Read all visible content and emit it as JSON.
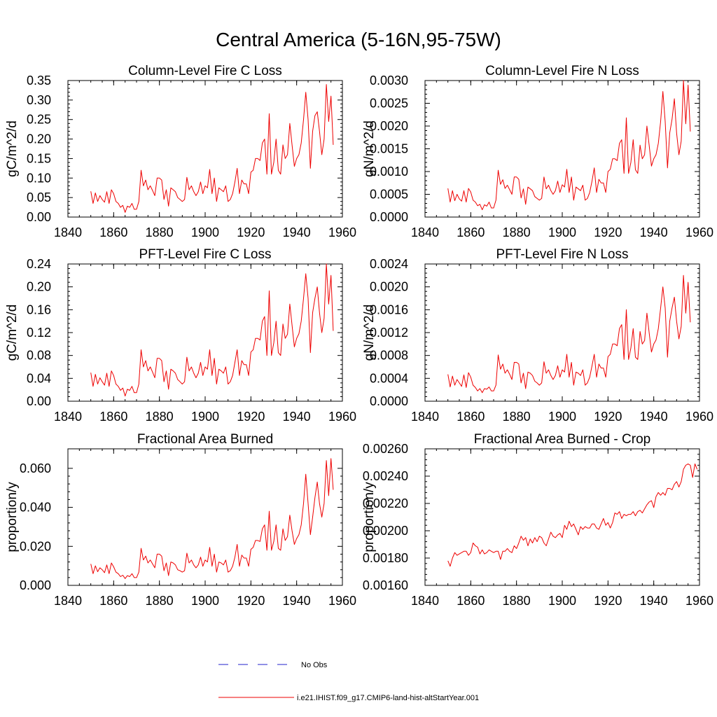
{
  "figure": {
    "title": "Central America (5-16N,95-75W)"
  },
  "legend": {
    "entries": [
      {
        "label": "No Obs",
        "color": "#2020cc",
        "dash": true
      },
      {
        "label": "i.e21.IHIST.f09_g17.CMIP6-land-hist-altStartYear.001",
        "color": "#ee0000",
        "dash": false
      }
    ]
  },
  "chart_data": [
    {
      "type": "line",
      "title": "Column-Level Fire C Loss",
      "ylabel": "gC/m^2/d",
      "xlim": [
        1840,
        1960
      ],
      "ylim": [
        0.0,
        0.35
      ],
      "xticks": [
        "1840",
        "1860",
        "1880",
        "1900",
        "1920",
        "1940",
        "1960"
      ],
      "yticks": [
        "0.00",
        "0.05",
        "0.10",
        "0.15",
        "0.20",
        "0.25",
        "0.30",
        "0.35"
      ],
      "series": [
        {
          "color": "#ee0000",
          "x_start": 1850,
          "values": [
            0.066,
            0.035,
            0.062,
            0.04,
            0.055,
            0.045,
            0.038,
            0.065,
            0.035,
            0.07,
            0.06,
            0.04,
            0.035,
            0.025,
            0.03,
            0.012,
            0.028,
            0.025,
            0.035,
            0.02,
            0.02,
            0.04,
            0.12,
            0.08,
            0.095,
            0.07,
            0.08,
            0.068,
            0.055,
            0.1,
            0.1,
            0.095,
            0.045,
            0.07,
            0.028,
            0.075,
            0.07,
            0.065,
            0.05,
            0.045,
            0.04,
            0.045,
            0.102,
            0.07,
            0.08,
            0.065,
            0.055,
            0.065,
            0.09,
            0.06,
            0.08,
            0.075,
            0.122,
            0.06,
            0.1,
            0.04,
            0.075,
            0.07,
            0.065,
            0.08,
            0.04,
            0.045,
            0.06,
            0.09,
            0.125,
            0.06,
            0.095,
            0.085,
            0.085,
            0.06,
            0.115,
            0.12,
            0.15,
            0.15,
            0.145,
            0.19,
            0.2,
            0.11,
            0.265,
            0.11,
            0.14,
            0.2,
            0.12,
            0.11,
            0.185,
            0.15,
            0.16,
            0.24,
            0.185,
            0.13,
            0.15,
            0.16,
            0.19,
            0.25,
            0.32,
            0.25,
            0.125,
            0.22,
            0.26,
            0.27,
            0.22,
            0.16,
            0.2,
            0.34,
            0.245,
            0.31,
            0.185
          ]
        }
      ]
    },
    {
      "type": "line",
      "title": "Column-Level Fire N Loss",
      "ylabel": "gN/m^2/d",
      "xlim": [
        1840,
        1960
      ],
      "ylim": [
        0.0,
        0.003
      ],
      "xticks": [
        "1840",
        "1860",
        "1880",
        "1900",
        "1920",
        "1940",
        "1960"
      ],
      "yticks": [
        "0.0000",
        "0.0005",
        "0.0010",
        "0.0015",
        "0.0020",
        "0.0025",
        "0.0030"
      ],
      "series": [
        {
          "color": "#ee0000",
          "x_start": 1850,
          "values": [
            0.00063,
            0.00033,
            0.00058,
            0.00036,
            0.0005,
            0.0004,
            0.00035,
            0.00058,
            0.00033,
            0.00063,
            0.00055,
            0.00037,
            0.00033,
            0.00025,
            0.00028,
            0.00016,
            0.00027,
            0.00024,
            0.00033,
            0.0002,
            0.0002,
            0.00037,
            0.00103,
            0.00072,
            0.00082,
            0.00063,
            0.0007,
            0.0006,
            0.0005,
            0.00088,
            0.00088,
            0.00083,
            0.00042,
            0.00062,
            0.00028,
            0.00066,
            0.00062,
            0.00058,
            0.00045,
            0.00041,
            0.00037,
            0.00041,
            0.00088,
            0.00062,
            0.0007,
            0.00058,
            0.0005,
            0.00058,
            0.00079,
            0.00054,
            0.00071,
            0.00066,
            0.00105,
            0.00054,
            0.00088,
            0.00037,
            0.00066,
            0.00062,
            0.00058,
            0.0007,
            0.00037,
            0.00041,
            0.00054,
            0.00079,
            0.00108,
            0.00054,
            0.00083,
            0.00075,
            0.00075,
            0.00054,
            0.001,
            0.00105,
            0.00128,
            0.00128,
            0.00124,
            0.00162,
            0.0017,
            0.00096,
            0.00218,
            0.00096,
            0.0012,
            0.0017,
            0.00104,
            0.00096,
            0.00158,
            0.00128,
            0.00137,
            0.002,
            0.00158,
            0.00112,
            0.00128,
            0.00137,
            0.00162,
            0.0021,
            0.00276,
            0.0021,
            0.00108,
            0.00185,
            0.00215,
            0.0026,
            0.00185,
            0.00137,
            0.00167,
            0.003,
            0.00205,
            0.0029,
            0.00188
          ]
        }
      ]
    },
    {
      "type": "line",
      "title": "PFT-Level Fire C Loss",
      "ylabel": "gC/m^2/d",
      "xlim": [
        1840,
        1960
      ],
      "ylim": [
        0.0,
        0.24
      ],
      "xticks": [
        "1840",
        "1860",
        "1880",
        "1900",
        "1920",
        "1940",
        "1960"
      ],
      "yticks": [
        "0.00",
        "0.04",
        "0.08",
        "0.12",
        "0.16",
        "0.20",
        "0.24"
      ],
      "series": [
        {
          "color": "#ee0000",
          "x_start": 1850,
          "values": [
            0.05,
            0.026,
            0.047,
            0.03,
            0.041,
            0.034,
            0.028,
            0.049,
            0.026,
            0.053,
            0.045,
            0.03,
            0.026,
            0.019,
            0.023,
            0.009,
            0.021,
            0.019,
            0.026,
            0.015,
            0.015,
            0.03,
            0.09,
            0.06,
            0.071,
            0.053,
            0.06,
            0.051,
            0.041,
            0.075,
            0.075,
            0.071,
            0.034,
            0.053,
            0.021,
            0.056,
            0.053,
            0.049,
            0.038,
            0.034,
            0.03,
            0.034,
            0.077,
            0.053,
            0.06,
            0.049,
            0.041,
            0.049,
            0.068,
            0.045,
            0.06,
            0.056,
            0.09,
            0.045,
            0.075,
            0.03,
            0.056,
            0.053,
            0.049,
            0.06,
            0.03,
            0.034,
            0.045,
            0.068,
            0.09,
            0.045,
            0.071,
            0.064,
            0.064,
            0.045,
            0.086,
            0.09,
            0.11,
            0.11,
            0.107,
            0.14,
            0.148,
            0.08,
            0.193,
            0.08,
            0.102,
            0.14,
            0.085,
            0.08,
            0.135,
            0.11,
            0.117,
            0.17,
            0.133,
            0.095,
            0.11,
            0.118,
            0.14,
            0.18,
            0.223,
            0.18,
            0.085,
            0.155,
            0.18,
            0.2,
            0.155,
            0.12,
            0.145,
            0.24,
            0.17,
            0.22,
            0.123
          ]
        }
      ]
    },
    {
      "type": "line",
      "title": "PFT-Level Fire N Loss",
      "ylabel": "gN/m^2/d",
      "xlim": [
        1840,
        1960
      ],
      "ylim": [
        0.0,
        0.0024
      ],
      "xticks": [
        "1840",
        "1860",
        "1880",
        "1900",
        "1920",
        "1940",
        "1960"
      ],
      "yticks": [
        "0.0000",
        "0.0004",
        "0.0008",
        "0.0012",
        "0.0016",
        "0.0020",
        "0.0024"
      ],
      "series": [
        {
          "color": "#ee0000",
          "x_start": 1850,
          "values": [
            0.00047,
            0.00025,
            0.00044,
            0.00028,
            0.00038,
            0.00032,
            0.00026,
            0.00046,
            0.00024,
            0.0005,
            0.00042,
            0.00028,
            0.00024,
            0.00018,
            0.00022,
            0.00015,
            0.00022,
            0.00021,
            0.00025,
            0.00018,
            0.00018,
            0.00028,
            0.00081,
            0.00056,
            0.00065,
            0.00049,
            0.00055,
            0.00047,
            0.00038,
            0.00068,
            0.00068,
            0.00065,
            0.00032,
            0.00049,
            0.00022,
            0.00051,
            0.00049,
            0.00045,
            0.00035,
            0.00032,
            0.00028,
            0.00032,
            0.00069,
            0.00049,
            0.00055,
            0.00045,
            0.00038,
            0.00045,
            0.00062,
            0.00042,
            0.00055,
            0.00051,
            0.00082,
            0.00042,
            0.00068,
            0.00028,
            0.00051,
            0.00049,
            0.00045,
            0.00055,
            0.00028,
            0.00032,
            0.00042,
            0.00062,
            0.00082,
            0.00042,
            0.00065,
            0.00058,
            0.00058,
            0.00042,
            0.00078,
            0.00082,
            0.001,
            0.001,
            0.00097,
            0.00127,
            0.00134,
            0.00073,
            0.0016,
            0.00073,
            0.00093,
            0.00127,
            0.00077,
            0.00073,
            0.00122,
            0.001,
            0.00106,
            0.00154,
            0.0012,
            0.00086,
            0.001,
            0.00107,
            0.00127,
            0.00163,
            0.002,
            0.00163,
            0.00077,
            0.0014,
            0.00163,
            0.00182,
            0.0014,
            0.00109,
            0.00131,
            0.0022,
            0.00154,
            0.00208,
            0.00138
          ]
        }
      ]
    },
    {
      "type": "line",
      "title": "Fractional Area Burned",
      "ylabel": "proportion/y",
      "xlim": [
        1840,
        1960
      ],
      "ylim": [
        0.0,
        0.07
      ],
      "xticks": [
        "1840",
        "1860",
        "1880",
        "1900",
        "1920",
        "1940",
        "1960"
      ],
      "yticks": [
        "0.000",
        "0.020",
        "0.040",
        "0.060"
      ],
      "ytick_values": [
        0.0,
        0.02,
        0.04,
        0.06
      ],
      "series": [
        {
          "color": "#ee0000",
          "x_start": 1850,
          "values": [
            0.011,
            0.006,
            0.01,
            0.007,
            0.009,
            0.008,
            0.0065,
            0.0105,
            0.006,
            0.0115,
            0.0095,
            0.0068,
            0.006,
            0.0045,
            0.0052,
            0.0035,
            0.005,
            0.0045,
            0.006,
            0.004,
            0.004,
            0.0068,
            0.019,
            0.013,
            0.015,
            0.0115,
            0.013,
            0.011,
            0.009,
            0.016,
            0.016,
            0.015,
            0.0075,
            0.0115,
            0.005,
            0.012,
            0.0115,
            0.0105,
            0.008,
            0.0075,
            0.0068,
            0.0075,
            0.0165,
            0.0115,
            0.013,
            0.0105,
            0.009,
            0.0105,
            0.0145,
            0.0098,
            0.013,
            0.012,
            0.0195,
            0.0098,
            0.016,
            0.0068,
            0.012,
            0.0115,
            0.0105,
            0.013,
            0.0068,
            0.0075,
            0.0098,
            0.0145,
            0.021,
            0.0098,
            0.0155,
            0.014,
            0.014,
            0.0098,
            0.0185,
            0.0195,
            0.023,
            0.023,
            0.0225,
            0.029,
            0.031,
            0.018,
            0.038,
            0.018,
            0.0225,
            0.031,
            0.019,
            0.018,
            0.029,
            0.023,
            0.025,
            0.036,
            0.028,
            0.021,
            0.024,
            0.026,
            0.031,
            0.042,
            0.057,
            0.042,
            0.026,
            0.035,
            0.045,
            0.053,
            0.042,
            0.035,
            0.042,
            0.064,
            0.046,
            0.065,
            0.049
          ]
        }
      ]
    },
    {
      "type": "line",
      "title": "Fractional Area Burned - Crop",
      "ylabel": "proportion/y",
      "xlim": [
        1840,
        1960
      ],
      "ylim": [
        0.0016,
        0.0026
      ],
      "xticks": [
        "1840",
        "1860",
        "1880",
        "1900",
        "1920",
        "1940",
        "1960"
      ],
      "yticks": [
        "0.00160",
        "0.00180",
        "0.00200",
        "0.00220",
        "0.00240",
        "0.00260"
      ],
      "series": [
        {
          "color": "#ee0000",
          "x_start": 1850,
          "values": [
            0.00178,
            0.00174,
            0.0018,
            0.00184,
            0.00182,
            0.00183,
            0.00184,
            0.00185,
            0.00185,
            0.00182,
            0.00184,
            0.00191,
            0.00189,
            0.00188,
            0.00183,
            0.00186,
            0.00183,
            0.00184,
            0.00186,
            0.00185,
            0.00184,
            0.00185,
            0.00185,
            0.00179,
            0.00185,
            0.00185,
            0.00187,
            0.00185,
            0.00184,
            0.00189,
            0.00187,
            0.00191,
            0.00196,
            0.00193,
            0.00195,
            0.00189,
            0.00194,
            0.00191,
            0.00195,
            0.00192,
            0.00196,
            0.00195,
            0.00191,
            0.00189,
            0.00194,
            0.00199,
            0.00196,
            0.00195,
            0.00197,
            0.00198,
            0.00195,
            0.00204,
            0.00201,
            0.00207,
            0.00203,
            0.00205,
            0.00201,
            0.00197,
            0.00203,
            0.00201,
            0.00203,
            0.00202,
            0.00202,
            0.00205,
            0.00205,
            0.00202,
            0.00201,
            0.00205,
            0.00209,
            0.00204,
            0.00206,
            0.00202,
            0.00206,
            0.00213,
            0.00212,
            0.00214,
            0.00209,
            0.00212,
            0.00211,
            0.00212,
            0.00212,
            0.00214,
            0.00211,
            0.00214,
            0.00215,
            0.00213,
            0.00216,
            0.00219,
            0.00221,
            0.00222,
            0.00217,
            0.00225,
            0.00228,
            0.00226,
            0.00228,
            0.00226,
            0.00231,
            0.00231,
            0.0023,
            0.00234,
            0.00236,
            0.00232,
            0.00236,
            0.00245,
            0.00248,
            0.00249,
            0.00248,
            0.00239,
            0.00249,
            0.00245
          ]
        }
      ]
    }
  ]
}
